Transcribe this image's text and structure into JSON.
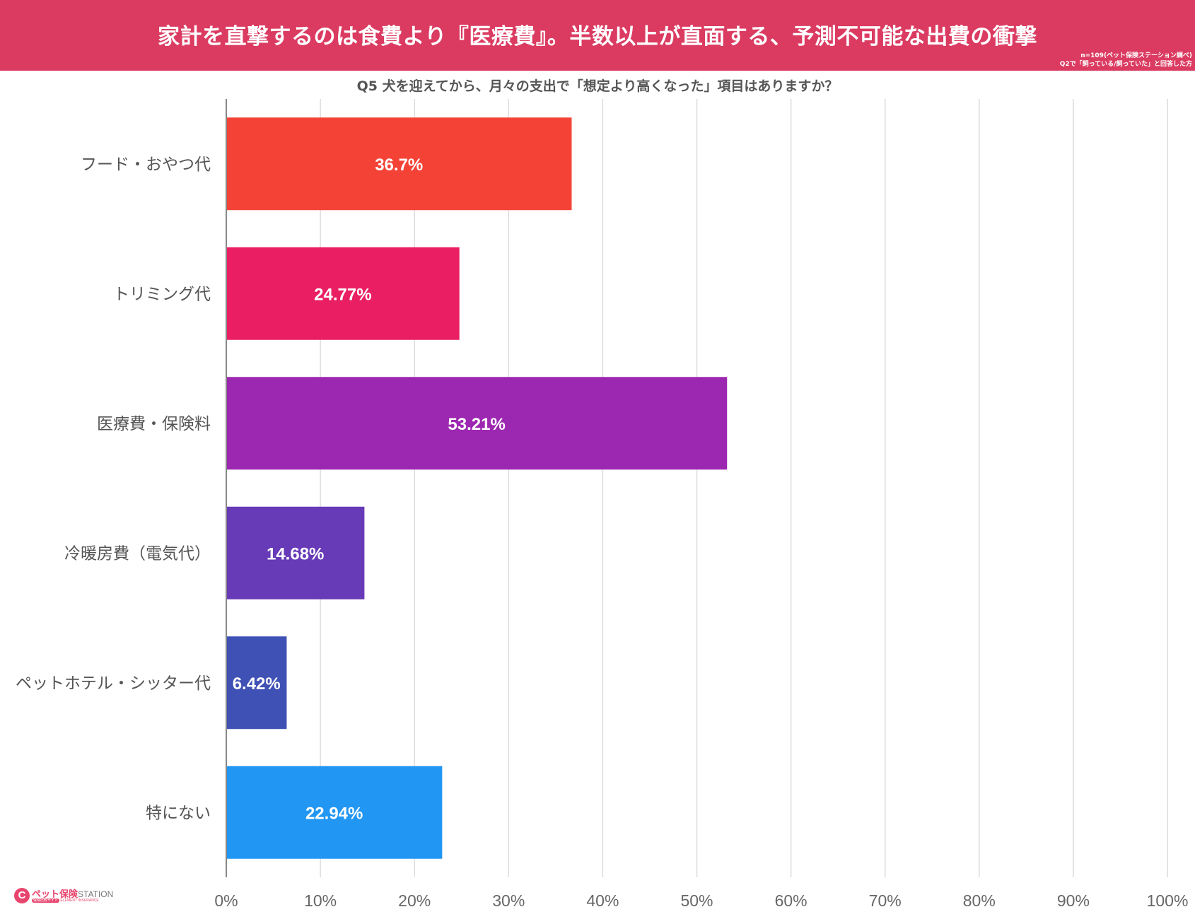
{
  "header": {
    "title": "家計を直撃するのは食費より『医療費』。半数以上が直面する、予測不可能な出費の衝撃",
    "note_line1": "n=109(ペット保険ステーション調べ)",
    "note_line2": "Q2で「飼っている/飼っていた」と回答した方"
  },
  "colors": {
    "banner": "#db3b61",
    "axis_text": "#666666",
    "label_text": "#555555"
  },
  "logo": {
    "icon": "pet-insurance-logo-icon",
    "name": "ペット保険",
    "station": "STATION",
    "sub_pill": "保険比較サイト",
    "sub_text": "ELEMENT INSURANCE"
  },
  "chart_data": {
    "type": "bar",
    "orientation": "horizontal",
    "title": "Q5 犬を迎えてから、月々の支出で「想定より高くなった」項目はありますか？",
    "categories": [
      "フード・おやつ代",
      "トリミング代",
      "医療費・保険料",
      "冷暖房費（電気代）",
      "ペットホテル・シッター代",
      "特にない"
    ],
    "values": [
      36.7,
      24.77,
      53.21,
      14.68,
      6.42,
      22.94
    ],
    "data_labels": [
      "36.7%",
      "24.77%",
      "53.21%",
      "14.68%",
      "6.42%",
      "22.94%"
    ],
    "bar_colors": [
      "#f44336",
      "#e91e63",
      "#9c27b0",
      "#673ab7",
      "#3f51b5",
      "#2196f3"
    ],
    "xlim": [
      0,
      100
    ],
    "x_ticks": [
      "0%",
      "10%",
      "20%",
      "30%",
      "40%",
      "50%",
      "60%",
      "70%",
      "80%",
      "90%",
      "100%"
    ],
    "grid": true
  }
}
